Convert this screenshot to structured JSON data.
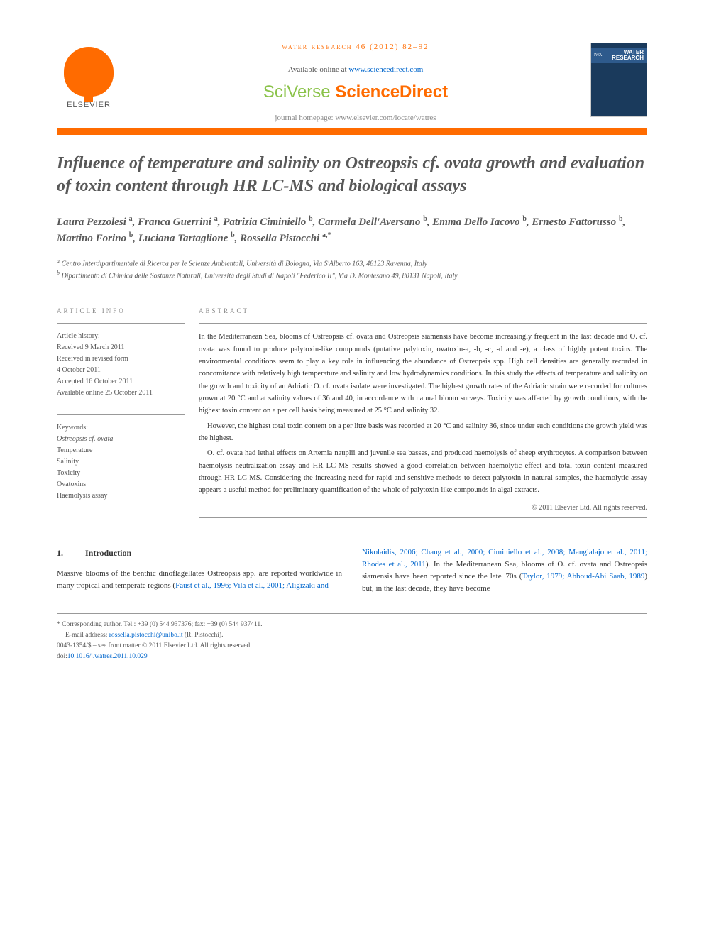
{
  "journal_ref": "water research 46 (2012) 82–92",
  "availability_pre": "Available online at ",
  "availability_link": "www.sciencedirect.com",
  "sciverse_sci": "SciVerse ",
  "sciverse_direct": "ScienceDirect",
  "homepage": "journal homepage: www.elsevier.com/locate/watres",
  "elsevier_label": "ELSEVIER",
  "cover_title": "WATER RESEARCH",
  "cover_logo": "IWA",
  "title": "Influence of temperature and salinity on Ostreopsis cf. ovata growth and evaluation of toxin content through HR LC-MS and biological assays",
  "authors_html": "Laura Pezzolesi <sup>a</sup>, Franca Guerrini <sup>a</sup>, Patrizia Ciminiello <sup>b</sup>, Carmela Dell'Aversano <sup>b</sup>, Emma Dello Iacovo <sup>b</sup>, Ernesto Fattorusso <sup>b</sup>, Martino Forino <sup>b</sup>, Luciana Tartaglione <sup>b</sup>, Rossella Pistocchi <sup>a,*</sup>",
  "affiliations": {
    "a": "Centro Interdipartimentale di Ricerca per le Scienze Ambientali, Università di Bologna, Via S'Alberto 163, 48123 Ravenna, Italy",
    "b": "Dipartimento di Chimica delle Sostanze Naturali, Università degli Studi di Napoli \"Federico II\", Via D. Montesano 49, 80131 Napoli, Italy"
  },
  "article_info_label": "article info",
  "abstract_label": "abstract",
  "history_label": "Article history:",
  "history": {
    "received": "Received 9 March 2011",
    "revised_line1": "Received in revised form",
    "revised_line2": "4 October 2011",
    "accepted": "Accepted 16 October 2011",
    "online": "Available online 25 October 2011"
  },
  "keywords_label": "Keywords:",
  "keywords": [
    "Ostreopsis cf. ovata",
    "Temperature",
    "Salinity",
    "Toxicity",
    "Ovatoxins",
    "Haemolysis assay"
  ],
  "abstract": {
    "p1": "In the Mediterranean Sea, blooms of Ostreopsis cf. ovata and Ostreopsis siamensis have become increasingly frequent in the last decade and O. cf. ovata was found to produce palytoxin-like compounds (putative palytoxin, ovatoxin-a, -b, -c, -d and -e), a class of highly potent toxins. The environmental conditions seem to play a key role in influencing the abundance of Ostreopsis spp. High cell densities are generally recorded in concomitance with relatively high temperature and salinity and low hydrodynamics conditions. In this study the effects of temperature and salinity on the growth and toxicity of an Adriatic O. cf. ovata isolate were investigated. The highest growth rates of the Adriatic strain were recorded for cultures grown at 20 °C and at salinity values of 36 and 40, in accordance with natural bloom surveys. Toxicity was affected by growth conditions, with the highest toxin content on a per cell basis being measured at 25 °C and salinity 32.",
    "p2": "However, the highest total toxin content on a per litre basis was recorded at 20 °C and salinity 36, since under such conditions the growth yield was the highest.",
    "p3": "O. cf. ovata had lethal effects on Artemia nauplii and juvenile sea basses, and produced haemolysis of sheep erythrocytes. A comparison between haemolysis neutralization assay and HR LC-MS results showed a good correlation between haemolytic effect and total toxin content measured through HR LC-MS. Considering the increasing need for rapid and sensitive methods to detect palytoxin in natural samples, the haemolytic assay appears a useful method for preliminary quantification of the whole of palytoxin-like compounds in algal extracts."
  },
  "copyright": "© 2011 Elsevier Ltd. All rights reserved.",
  "section1_num": "1.",
  "section1_title": "Introduction",
  "intro_col1_pre": "Massive blooms of the benthic dinoflagellates Ostreopsis spp. are reported worldwide in many tropical and temperate regions (",
  "intro_col1_link1": "Faust et al., 1996; Vila et al., 2001; Aligizaki and",
  "intro_col2_link1": "Nikolaidis, 2006; Chang et al., 2000; Ciminiello et al., 2008; Mangialajo et al., 2011; Rhodes et al., 2011",
  "intro_col2_mid": "). In the Mediterranean Sea, blooms of O. cf. ovata and Ostreopsis siamensis have been reported since the late '70s (",
  "intro_col2_link2": "Taylor, 1979; Abboud-Abi Saab, 1989",
  "intro_col2_post": ") but, in the last decade, they have become",
  "footnotes": {
    "corr": "* Corresponding author. Tel.: +39 (0) 544 937376; fax: +39 (0) 544 937411.",
    "email_label": "E-mail address: ",
    "email_link": "rossella.pistocchi@unibo.it",
    "email_post": " (R. Pistocchi).",
    "issn": "0043-1354/$ – see front matter © 2011 Elsevier Ltd. All rights reserved.",
    "doi_pre": "doi:",
    "doi": "10.1016/j.watres.2011.10.029"
  }
}
